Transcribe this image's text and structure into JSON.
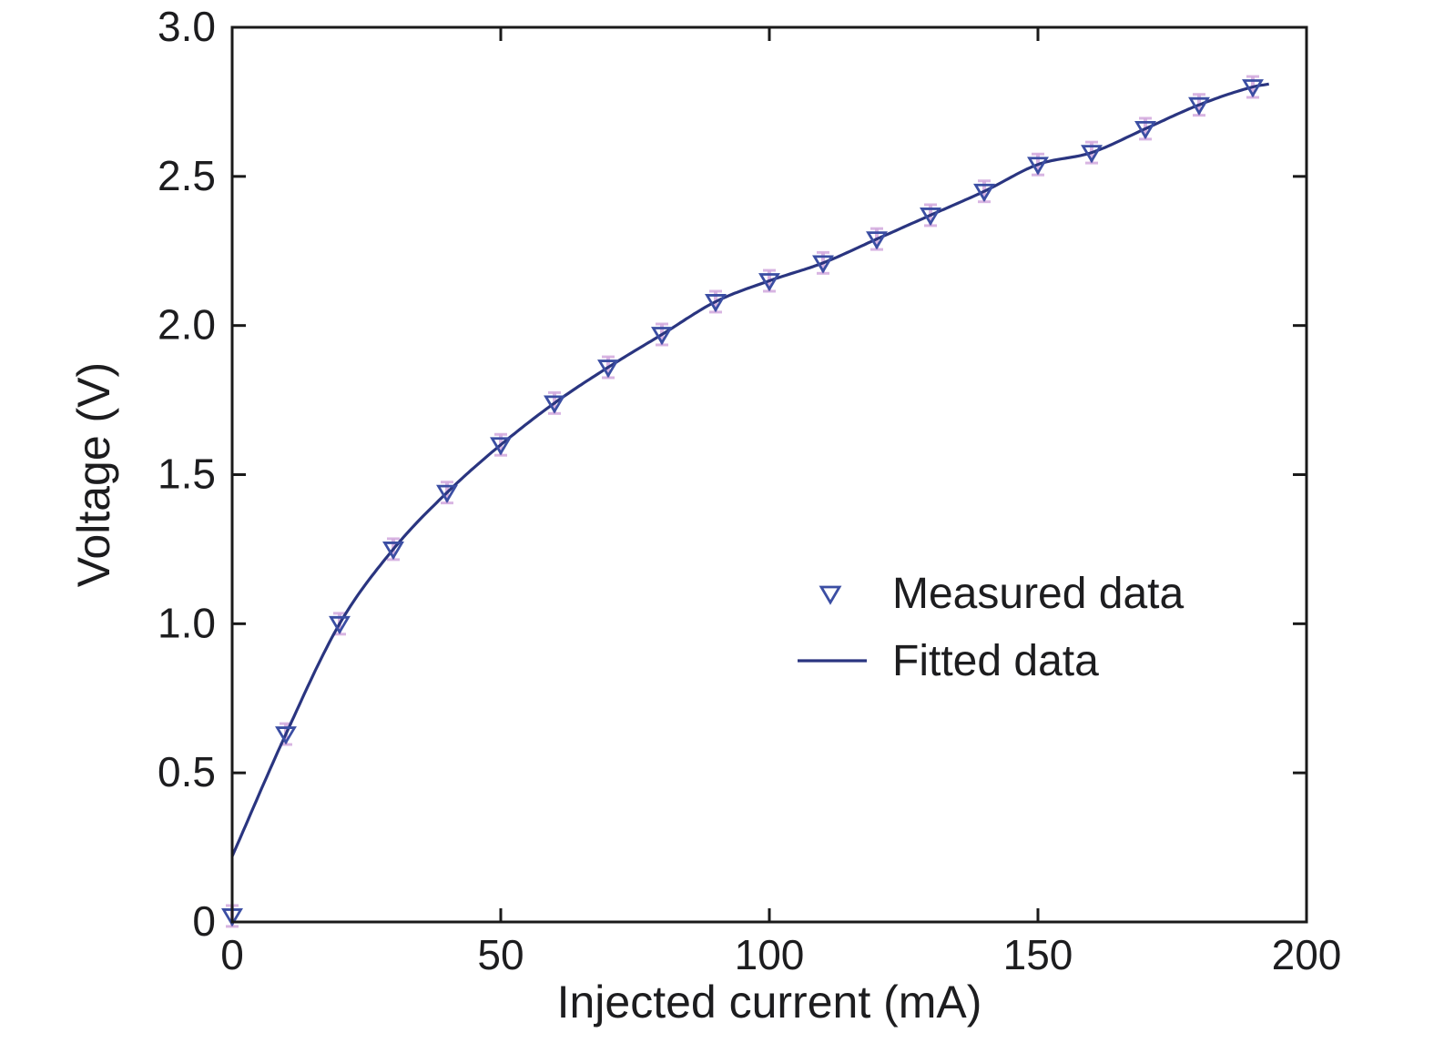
{
  "chart_data": {
    "type": "scatter",
    "title": "",
    "xlabel": "Injected current (mA)",
    "ylabel": "Voltage (V)",
    "xlim": [
      0,
      200
    ],
    "ylim": [
      0,
      3.0
    ],
    "xticks": [
      0,
      50,
      100,
      150,
      200
    ],
    "xtick_labels": [
      "0",
      "50",
      "100",
      "150",
      "200"
    ],
    "yticks": [
      0,
      0.5,
      1.0,
      1.5,
      2.0,
      2.5,
      3.0
    ],
    "ytick_labels": [
      "0",
      "0.5",
      "1.0",
      "1.5",
      "2.0",
      "2.5",
      "3.0"
    ],
    "grid": false,
    "legend_position": "inside-right",
    "colors": {
      "marker": "#3b4ea3",
      "line": "#2a3580",
      "errorbar": "#d2a9dd",
      "axis": "#1a1a1a",
      "text": "#2b2b2b"
    },
    "series": [
      {
        "name": "Measured data",
        "type": "scatter",
        "marker": "triangle-down-open",
        "x": [
          0,
          10,
          20,
          30,
          40,
          50,
          60,
          70,
          80,
          90,
          100,
          110,
          120,
          130,
          140,
          150,
          160,
          170,
          180,
          190
        ],
        "y": [
          0.02,
          0.63,
          1.0,
          1.25,
          1.44,
          1.6,
          1.74,
          1.86,
          1.97,
          2.08,
          2.15,
          2.21,
          2.29,
          2.37,
          2.45,
          2.54,
          2.58,
          2.66,
          2.74,
          2.8
        ],
        "yerr": 0.035
      },
      {
        "name": "Fitted data",
        "type": "line",
        "anchors_x": [
          0,
          10,
          20,
          30,
          40,
          50,
          60,
          70,
          80,
          90,
          100,
          110,
          120,
          130,
          140,
          150,
          160,
          170,
          180,
          190,
          193
        ],
        "anchors_y": [
          0.22,
          0.63,
          1.0,
          1.25,
          1.44,
          1.6,
          1.74,
          1.86,
          1.97,
          2.08,
          2.15,
          2.21,
          2.29,
          2.37,
          2.45,
          2.54,
          2.58,
          2.66,
          2.74,
          2.8,
          2.81
        ]
      }
    ],
    "legend": {
      "items": [
        {
          "label": "Measured data",
          "symbol": "triangle-down-open"
        },
        {
          "label": "Fitted data",
          "symbol": "line"
        }
      ]
    }
  }
}
